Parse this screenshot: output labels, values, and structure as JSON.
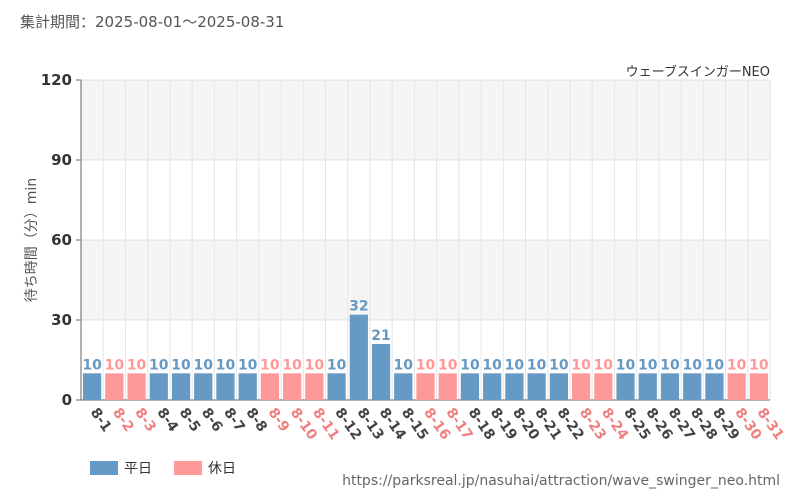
{
  "header": {
    "period_label": "集計期間：",
    "period": "2025-08-01～2025-08-31",
    "attraction": "ウェーブスインガーNEO"
  },
  "footer": {
    "source": "https://parksreal.jp/nasuhai/attraction/wave_swinger_neo.html"
  },
  "legend": {
    "weekday": "平日",
    "holiday": "休日"
  },
  "colors": {
    "weekday": "#6699c4",
    "holiday": "#ff9999",
    "weekday_label": "#6699c4",
    "holiday_label": "#ff9999",
    "weekday_tick": "#444444",
    "holiday_tick": "#f08080"
  },
  "chart_data": {
    "type": "bar",
    "ylabel": "待ち時間（分）min",
    "xlabel": "",
    "ylim": [
      0,
      120
    ],
    "yticks": [
      0,
      30,
      60,
      90,
      120
    ],
    "grid": true,
    "legend_position": "bottom-left",
    "categories": [
      "8-1",
      "8-2",
      "8-3",
      "8-4",
      "8-5",
      "8-6",
      "8-7",
      "8-8",
      "8-9",
      "8-10",
      "8-11",
      "8-12",
      "8-13",
      "8-14",
      "8-15",
      "8-16",
      "8-17",
      "8-18",
      "8-19",
      "8-20",
      "8-21",
      "8-22",
      "8-23",
      "8-24",
      "8-25",
      "8-26",
      "8-27",
      "8-28",
      "8-29",
      "8-30",
      "8-31"
    ],
    "values": [
      10,
      10,
      10,
      10,
      10,
      10,
      10,
      10,
      10,
      10,
      10,
      10,
      32,
      21,
      10,
      10,
      10,
      10,
      10,
      10,
      10,
      10,
      10,
      10,
      10,
      10,
      10,
      10,
      10,
      10,
      10
    ],
    "day_type": [
      "weekday",
      "holiday",
      "holiday",
      "weekday",
      "weekday",
      "weekday",
      "weekday",
      "weekday",
      "holiday",
      "holiday",
      "holiday",
      "weekday",
      "weekday",
      "weekday",
      "weekday",
      "holiday",
      "holiday",
      "weekday",
      "weekday",
      "weekday",
      "weekday",
      "weekday",
      "holiday",
      "holiday",
      "weekday",
      "weekday",
      "weekday",
      "weekday",
      "weekday",
      "holiday",
      "holiday"
    ]
  }
}
